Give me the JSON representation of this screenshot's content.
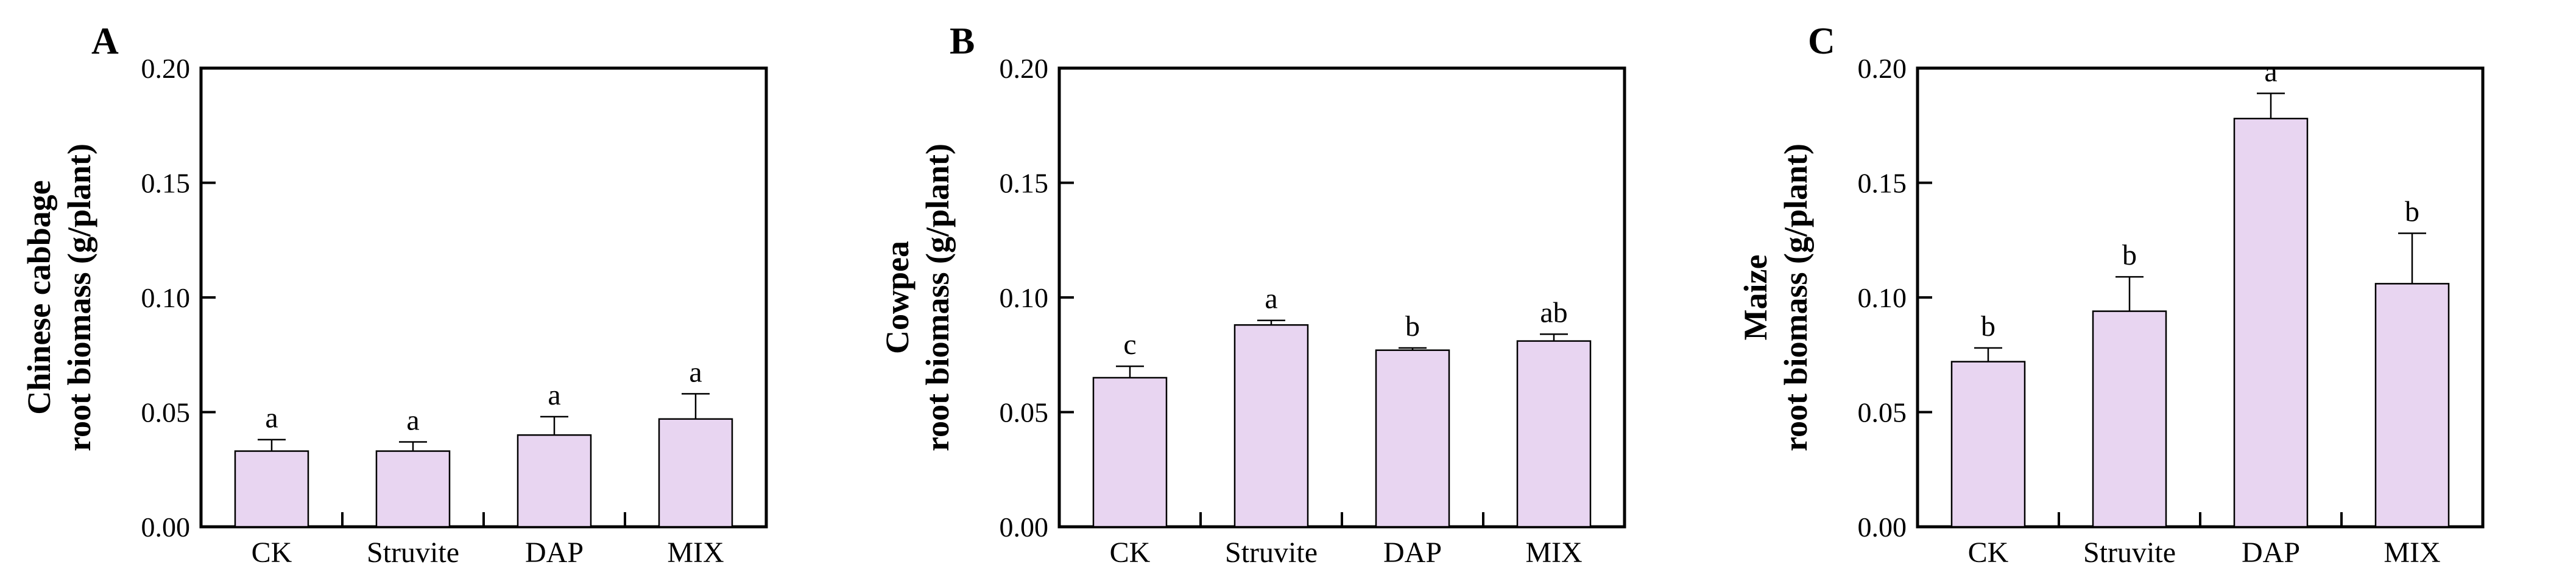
{
  "figure": {
    "background": "#ffffff",
    "bar_fill": "#e8d5f1",
    "bar_border": "#000000",
    "axis_color": "#000000",
    "text_color": "#000000",
    "error_bar_color": "#000000"
  },
  "chart_data": [
    {
      "type": "bar",
      "panel_label": "A",
      "ylabel_lines": [
        "Chinese cabbage",
        "root biomass (g/plant)"
      ],
      "xlabel": "",
      "categories": [
        "CK",
        "Struvite",
        "DAP",
        "MIX"
      ],
      "values": [
        0.033,
        0.033,
        0.04,
        0.047
      ],
      "errors": [
        0.005,
        0.004,
        0.008,
        0.011
      ],
      "sig_letters": [
        "a",
        "a",
        "a",
        "a"
      ],
      "ylim": [
        0,
        0.2
      ],
      "yticks": [
        0,
        0.05,
        0.1,
        0.15,
        0.2
      ],
      "ytick_labels": [
        "0.00",
        "0.05",
        "0.10",
        "0.15",
        "0.20"
      ],
      "grid": false,
      "legend": null
    },
    {
      "type": "bar",
      "panel_label": "B",
      "ylabel_lines": [
        "Cowpea",
        "root biomass (g/plant)"
      ],
      "xlabel": "",
      "categories": [
        "CK",
        "Struvite",
        "DAP",
        "MIX"
      ],
      "values": [
        0.065,
        0.088,
        0.077,
        0.081
      ],
      "errors": [
        0.005,
        0.002,
        0.001,
        0.003
      ],
      "sig_letters": [
        "c",
        "a",
        "b",
        "ab"
      ],
      "ylim": [
        0,
        0.2
      ],
      "yticks": [
        0,
        0.05,
        0.1,
        0.15,
        0.2
      ],
      "ytick_labels": [
        "0.00",
        "0.05",
        "0.10",
        "0.15",
        "0.20"
      ],
      "grid": false,
      "legend": null
    },
    {
      "type": "bar",
      "panel_label": "C",
      "ylabel_lines": [
        "Maize",
        "root biomass (g/plant)"
      ],
      "xlabel": "",
      "categories": [
        "CK",
        "Struvite",
        "DAP",
        "MIX"
      ],
      "values": [
        0.072,
        0.094,
        0.178,
        0.106
      ],
      "errors": [
        0.006,
        0.015,
        0.011,
        0.022
      ],
      "sig_letters": [
        "b",
        "b",
        "a",
        "b"
      ],
      "ylim": [
        0,
        0.2
      ],
      "yticks": [
        0,
        0.05,
        0.1,
        0.15,
        0.2
      ],
      "ytick_labels": [
        "0.00",
        "0.05",
        "0.10",
        "0.15",
        "0.20"
      ],
      "grid": false,
      "legend": null
    }
  ]
}
